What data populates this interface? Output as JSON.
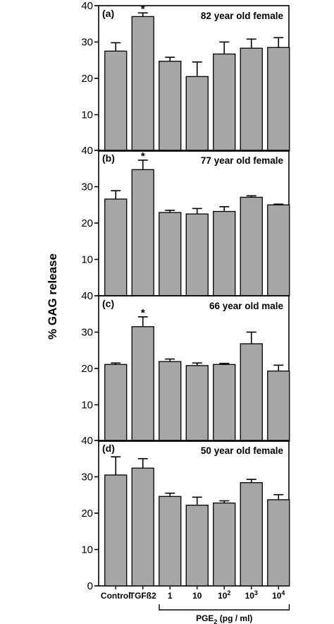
{
  "chart_data": {
    "type": "bar",
    "ylabel": "% GAG release",
    "ylim": [
      0,
      40
    ],
    "yticks": [
      0,
      10,
      20,
      30,
      40
    ],
    "categories": [
      {
        "label": "Control"
      },
      {
        "label": "TGFß2"
      },
      {
        "label": "1"
      },
      {
        "label": "10"
      },
      {
        "label": "10",
        "sup": "2"
      },
      {
        "label": "10",
        "sup": "3"
      },
      {
        "label": "10",
        "sup": "4"
      }
    ],
    "group_label": {
      "base": "PGE",
      "sub": "2",
      "rest": " (pg / ml)"
    },
    "bar_color": "#a6a6a6",
    "panels": [
      {
        "letter": "(a)",
        "title": "82 year old female",
        "values": [
          27.5,
          37.0,
          24.7,
          20.5,
          26.7,
          28.3,
          28.5
        ],
        "errors": [
          2.3,
          1.0,
          1.1,
          4.0,
          3.3,
          2.5,
          2.7
        ],
        "significant": [
          false,
          true,
          false,
          false,
          false,
          false,
          false
        ]
      },
      {
        "letter": "(b)",
        "title": "77 year old female",
        "values": [
          26.6,
          34.7,
          22.9,
          22.5,
          23.2,
          27.1,
          25.0
        ],
        "errors": [
          2.3,
          2.6,
          0.6,
          1.5,
          1.3,
          0.4,
          0.2
        ],
        "significant": [
          false,
          true,
          false,
          false,
          false,
          false,
          false
        ]
      },
      {
        "letter": "(c)",
        "title": "66 year old male",
        "values": [
          21.1,
          31.5,
          21.9,
          20.8,
          21.1,
          26.8,
          19.3
        ],
        "errors": [
          0.4,
          2.7,
          0.7,
          0.7,
          0.3,
          3.2,
          1.6
        ],
        "significant": [
          false,
          true,
          false,
          false,
          false,
          false,
          false
        ]
      },
      {
        "letter": "(d)",
        "title": "50 year old female",
        "values": [
          30.5,
          32.4,
          24.6,
          22.2,
          22.8,
          28.4,
          23.7
        ],
        "errors": [
          5.0,
          2.6,
          0.9,
          2.2,
          0.6,
          0.9,
          1.4
        ],
        "significant": [
          false,
          false,
          false,
          false,
          false,
          false,
          false
        ]
      }
    ]
  }
}
